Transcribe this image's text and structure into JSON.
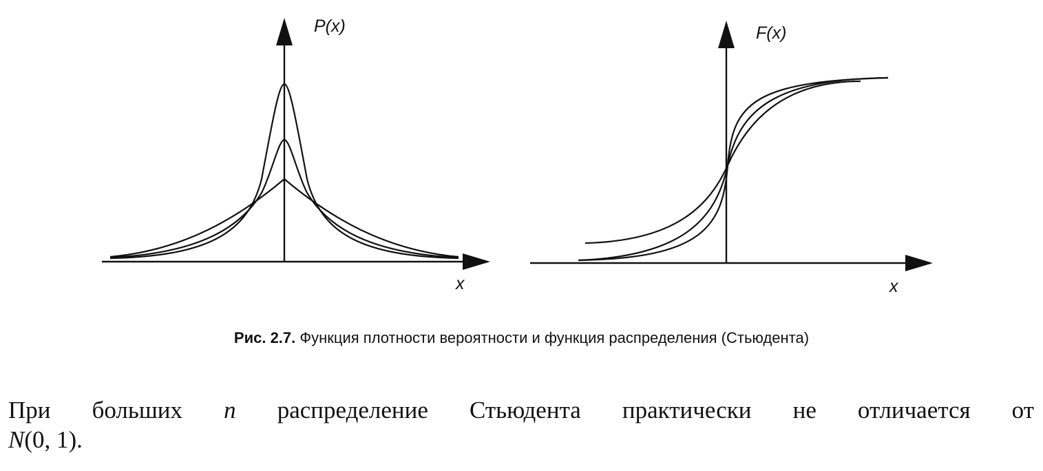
{
  "figure": {
    "left": {
      "y_label": "P(x)",
      "x_label": "x"
    },
    "right": {
      "y_label": "F(x)",
      "x_label": "x"
    },
    "caption": {
      "number": "Рис. 2.7.",
      "text": "Функция плотности вероятности и функция распределения (Стьюдента)"
    }
  },
  "paragraph": {
    "parts": [
      "При больших",
      "n",
      "распределение Стьюдента практически не отличается от",
      "N",
      "(0, 1)."
    ]
  }
}
